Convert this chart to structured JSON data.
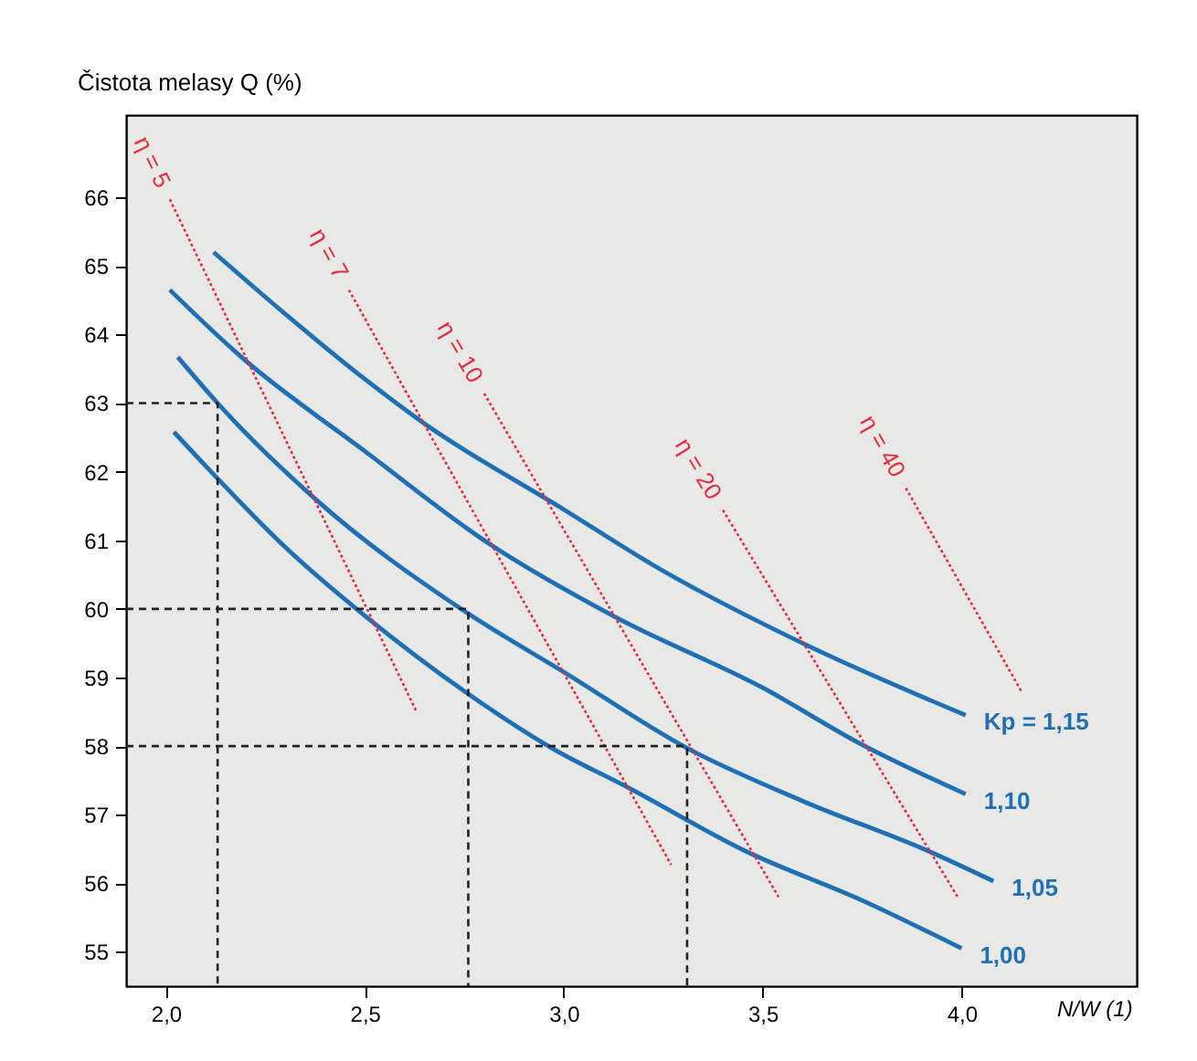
{
  "chart_data": {
    "type": "line",
    "xlabel": "N/W (1)",
    "ylabel": "Čistota melasy Q (%)",
    "xlim": [
      1.9,
      4.44
    ],
    "ylim": [
      54.5,
      67.2
    ],
    "xticks": [
      {
        "value": 2,
        "label": "2,0"
      },
      {
        "value": 2.5,
        "label": "2,5"
      },
      {
        "value": 3,
        "label": "3,0"
      },
      {
        "value": 3.5,
        "label": "3,5"
      },
      {
        "value": 4,
        "label": "4,0"
      }
    ],
    "yticks": [
      55,
      56,
      57,
      58,
      59,
      60,
      61,
      62,
      63,
      64,
      65,
      66
    ],
    "grid": false,
    "marker": "none",
    "series": [
      {
        "name": "Kp = 1,15",
        "color": "#1f6fb4",
        "line_style": "solid",
        "x": [
          2.12,
          2.3,
          2.5,
          2.65,
          3.0,
          3.23,
          3.6,
          4.01
        ],
        "values": [
          65.2,
          64.3,
          63.35,
          62.7,
          61.45,
          60.62,
          59.5,
          58.45
        ]
      },
      {
        "name": "1,10",
        "color": "#1f6fb4",
        "line_style": "solid",
        "x": [
          2.01,
          2.19,
          2.5,
          2.81,
          3.13,
          3.5,
          3.75,
          4.01
        ],
        "values": [
          64.65,
          63.67,
          62.3,
          60.96,
          59.88,
          58.85,
          58.02,
          57.3
        ]
      },
      {
        "name": "1,05",
        "color": "#1f6fb4",
        "line_style": "solid",
        "x": [
          2.03,
          2.13,
          2.37,
          2.76,
          3.0,
          3.31,
          3.6,
          3.92,
          4.08
        ],
        "values": [
          63.67,
          63.0,
          61.63,
          59.93,
          59.08,
          57.97,
          57.2,
          56.46,
          56.03
        ]
      },
      {
        "name": "1,00",
        "color": "#1f6fb4",
        "line_style": "solid",
        "x": [
          2.02,
          2.13,
          2.3,
          2.5,
          2.76,
          2.97,
          3.16,
          3.46,
          3.75,
          4.0
        ],
        "values": [
          62.58,
          61.9,
          60.9,
          59.9,
          58.76,
          57.97,
          57.4,
          56.46,
          55.75,
          55.05
        ]
      },
      {
        "name": "η = 5",
        "color": "#e8283c",
        "line_style": "dotted",
        "x": [
          2.01,
          2.63
        ],
        "values": [
          65.97,
          58.5
        ]
      },
      {
        "name": "η = 7",
        "color": "#e8283c",
        "line_style": "dotted",
        "x": [
          2.46,
          3.27
        ],
        "values": [
          64.65,
          56.27
        ]
      },
      {
        "name": "η = 10",
        "color": "#e8283c",
        "line_style": "dotted",
        "x": [
          2.8,
          3.54
        ],
        "values": [
          63.14,
          55.8
        ]
      },
      {
        "name": "η = 20",
        "color": "#e8283c",
        "line_style": "dotted",
        "x": [
          3.4,
          3.99
        ],
        "values": [
          61.44,
          55.8
        ]
      },
      {
        "name": "η = 40",
        "color": "#e8283c",
        "line_style": "dotted",
        "x": [
          3.86,
          4.15
        ],
        "values": [
          61.76,
          58.8
        ]
      },
      {
        "color": "#222222",
        "line_style": "dashed",
        "x": [
          1.9,
          2.13,
          2.13
        ],
        "values": [
          63,
          63,
          54.5
        ]
      },
      {
        "color": "#222222",
        "line_style": "dashed",
        "x": [
          1.9,
          2.76,
          2.76
        ],
        "values": [
          60,
          60,
          54.5
        ]
      },
      {
        "color": "#222222",
        "line_style": "dashed",
        "x": [
          1.9,
          3.31,
          3.31
        ],
        "values": [
          58,
          58,
          54.5
        ]
      }
    ]
  }
}
